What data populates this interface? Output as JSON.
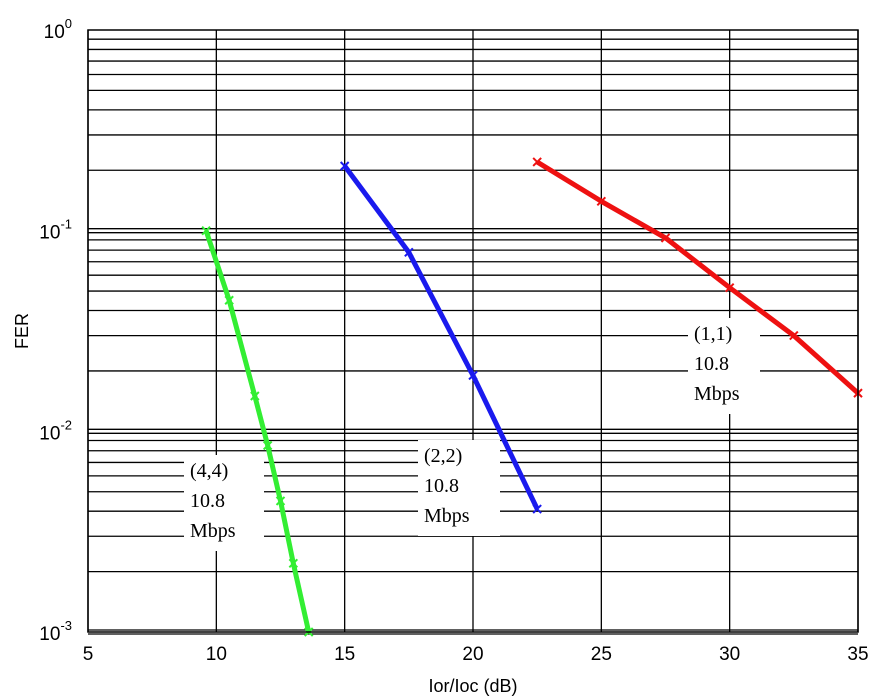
{
  "chart_data": {
    "type": "line",
    "xlabel": "Ior/Ioc (dB)",
    "ylabel": "FER",
    "xlim": [
      5,
      35
    ],
    "ylim": [
      0.001,
      1
    ],
    "yscale": "log",
    "grid": true,
    "x_ticks": [
      "5",
      "10",
      "15",
      "20",
      "25",
      "30",
      "35"
    ],
    "y_ticks": [
      {
        "base": "10",
        "exp": "0"
      },
      {
        "base": "10",
        "exp": "-1"
      },
      {
        "base": "10",
        "exp": "-2"
      },
      {
        "base": "10",
        "exp": "-3"
      }
    ],
    "series": [
      {
        "color": "#33ee33",
        "x": [
          9.6,
          10.5,
          11.5,
          12.0,
          12.5,
          13.0,
          13.6
        ],
        "y": [
          0.1,
          0.045,
          0.015,
          0.0085,
          0.0045,
          0.0022,
          0.001
        ],
        "annotation": [
          "(4,4)",
          "10.8",
          "Mbps"
        ]
      },
      {
        "color": "#1a1aee",
        "x": [
          15.0,
          17.5,
          20.0,
          22.5
        ],
        "y": [
          0.21,
          0.078,
          0.019,
          0.0041
        ],
        "annotation": [
          "(2,2)",
          "10.8",
          "Mbps"
        ]
      },
      {
        "color": "#ee1111",
        "x": [
          22.5,
          25.0,
          27.5,
          30.0,
          32.5,
          35.0
        ],
        "y": [
          0.22,
          0.14,
          0.092,
          0.052,
          0.03,
          0.0155
        ],
        "annotation": [
          "(1,1)",
          "10.8",
          "Mbps"
        ]
      }
    ]
  }
}
